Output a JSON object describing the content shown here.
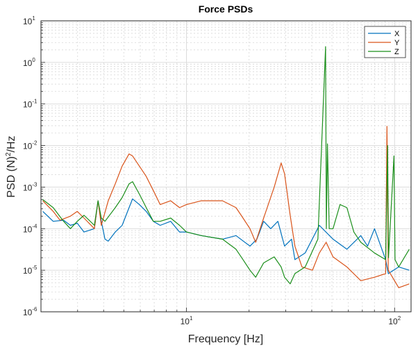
{
  "chart_data": {
    "type": "line",
    "title": "Force PSDs",
    "xlabel": "Frequency [Hz]",
    "ylabel_main": "PSD (N)",
    "ylabel_sup": "2",
    "ylabel_tail": "/Hz",
    "xscale": "log",
    "yscale": "log",
    "xlim": [
      2,
      120
    ],
    "ylim": [
      1e-06,
      10
    ],
    "grid": true,
    "minor_grid": true,
    "legend_placement": "top-right",
    "x_ticks": [
      {
        "base": "10",
        "exp": "1",
        "value": 10
      },
      {
        "base": "10",
        "exp": "2",
        "value": 100
      }
    ],
    "y_ticks": [
      {
        "base": "10",
        "exp": "1",
        "value": 10
      },
      {
        "base": "10",
        "exp": "0",
        "value": 1
      },
      {
        "base": "10",
        "exp": "-1",
        "value": 0.1
      },
      {
        "base": "10",
        "exp": "-2",
        "value": 0.01
      },
      {
        "base": "10",
        "exp": "-3",
        "value": 0.001
      },
      {
        "base": "10",
        "exp": "-4",
        "value": 0.0001
      },
      {
        "base": "10",
        "exp": "-5",
        "value": 1e-05
      },
      {
        "base": "10",
        "exp": "-6",
        "value": 1e-06
      }
    ],
    "series": [
      {
        "name": "X",
        "color": "#0072BD",
        "points": [
          [
            2.04,
            0.00026
          ],
          [
            2.29,
            0.00015
          ],
          [
            2.57,
            0.00016
          ],
          [
            2.77,
            0.00012
          ],
          [
            2.99,
            0.000135
          ],
          [
            3.22,
            8.3e-05
          ],
          [
            3.61,
            0.0001
          ],
          [
            3.76,
            0.00047
          ],
          [
            3.9,
            0.00015
          ],
          [
            4.06,
            5.6e-05
          ],
          [
            4.21,
            5e-05
          ],
          [
            4.55,
            8.3e-05
          ],
          [
            4.91,
            0.00012
          ],
          [
            5.3,
            0.00032
          ],
          [
            5.51,
            0.00052
          ],
          [
            5.94,
            0.00038
          ],
          [
            6.41,
            0.00026
          ],
          [
            6.93,
            0.00015
          ],
          [
            7.48,
            0.00012
          ],
          [
            8.4,
            0.00015
          ],
          [
            9.27,
            8.3e-05
          ],
          [
            10,
            8.3e-05
          ],
          [
            11.8,
            6.8e-05
          ],
          [
            14.9,
            5.6e-05
          ],
          [
            17.3,
            6.8e-05
          ],
          [
            20.2,
            3.8e-05
          ],
          [
            21.8,
            5.6e-05
          ],
          [
            23.5,
            0.00015
          ],
          [
            25.4,
            0.0001
          ],
          [
            27.5,
            0.00015
          ],
          [
            29.6,
            3.8e-05
          ],
          [
            32.0,
            5.6e-05
          ],
          [
            33.2,
            1.8e-05
          ],
          [
            37.2,
            2.6e-05
          ],
          [
            43.5,
            0.00012
          ],
          [
            50.6,
            5.6e-05
          ],
          [
            59.0,
            3.2e-05
          ],
          [
            68.8,
            6.8e-05
          ],
          [
            74.2,
            3.8e-05
          ],
          [
            80.1,
            0.0001
          ],
          [
            90.6,
            1.8e-05
          ],
          [
            93.3,
            8.3e-06
          ],
          [
            104.7,
            1.2e-05
          ],
          [
            117.6,
            1e-05
          ]
        ]
      },
      {
        "name": "Y",
        "color": "#D95319",
        "points": [
          [
            2.04,
            0.00047
          ],
          [
            2.29,
            0.00026
          ],
          [
            2.47,
            0.00016
          ],
          [
            2.77,
            0.0002
          ],
          [
            2.99,
            0.00026
          ],
          [
            3.22,
            0.00018
          ],
          [
            3.61,
            0.0001
          ],
          [
            3.76,
            0.00047
          ],
          [
            3.9,
            0.00012
          ],
          [
            4.21,
            0.00047
          ],
          [
            4.55,
            0.0012
          ],
          [
            4.91,
            0.0032
          ],
          [
            5.3,
            0.0063
          ],
          [
            5.51,
            0.0056
          ],
          [
            5.94,
            0.0032
          ],
          [
            6.41,
            0.0018
          ],
          [
            6.93,
            0.00083
          ],
          [
            7.48,
            0.00038
          ],
          [
            8.4,
            0.00047
          ],
          [
            9.27,
            0.00032
          ],
          [
            10,
            0.00038
          ],
          [
            11.8,
            0.00047
          ],
          [
            14.9,
            0.00047
          ],
          [
            17.3,
            0.00032
          ],
          [
            18.7,
            0.00018
          ],
          [
            20.2,
            0.0001
          ],
          [
            21.5,
            4.7e-05
          ],
          [
            23.5,
            0.00018
          ],
          [
            26.4,
            0.001
          ],
          [
            28.5,
            0.0038
          ],
          [
            29.6,
            0.0021
          ],
          [
            31.5,
            0.00021
          ],
          [
            33.2,
            3.8e-05
          ],
          [
            35.9,
            1.2e-05
          ],
          [
            40.3,
            1e-05
          ],
          [
            43.5,
            2.6e-05
          ],
          [
            46.9,
            4.7e-05
          ],
          [
            50.6,
            2.1e-05
          ],
          [
            59.0,
            1.2e-05
          ],
          [
            68.8,
            5.6e-06
          ],
          [
            80.1,
            6.8e-06
          ],
          [
            90.6,
            8.3e-06
          ],
          [
            91.9,
            0.029
          ],
          [
            93.3,
            1e-05
          ],
          [
            104.7,
            3.8e-06
          ],
          [
            117.6,
            4.7e-06
          ]
        ]
      },
      {
        "name": "Z",
        "color": "#1B8F1B",
        "points": [
          [
            2.04,
            0.0005
          ],
          [
            2.29,
            0.00032
          ],
          [
            2.57,
            0.00015
          ],
          [
            2.77,
            0.0001
          ],
          [
            2.99,
            0.00015
          ],
          [
            3.22,
            0.00021
          ],
          [
            3.61,
            0.00012
          ],
          [
            3.76,
            0.00047
          ],
          [
            3.9,
            0.00018
          ],
          [
            4.06,
            0.00015
          ],
          [
            4.55,
            0.00032
          ],
          [
            4.91,
            0.00056
          ],
          [
            5.3,
            0.0012
          ],
          [
            5.51,
            0.00135
          ],
          [
            5.94,
            0.00068
          ],
          [
            6.41,
            0.00032
          ],
          [
            6.93,
            0.00015
          ],
          [
            7.48,
            0.00015
          ],
          [
            8.4,
            0.00018
          ],
          [
            9.27,
            0.00012
          ],
          [
            10,
            8.3e-05
          ],
          [
            11.8,
            6.8e-05
          ],
          [
            14.9,
            5.6e-05
          ],
          [
            17.3,
            3.2e-05
          ],
          [
            18.7,
            1.8e-05
          ],
          [
            20.2,
            1e-05
          ],
          [
            21.5,
            6.8e-06
          ],
          [
            23.5,
            1.5e-05
          ],
          [
            26.4,
            2.1e-05
          ],
          [
            28.5,
            1.2e-05
          ],
          [
            29.6,
            6.8e-06
          ],
          [
            31.5,
            4.7e-06
          ],
          [
            33.2,
            8.3e-06
          ],
          [
            37.2,
            1.2e-05
          ],
          [
            42.8,
            5.6e-05
          ],
          [
            46.6,
            2.4
          ],
          [
            47.0,
            0.0001
          ],
          [
            47.6,
            0.011
          ],
          [
            48.5,
            0.0001
          ],
          [
            50.6,
            0.0001
          ],
          [
            54.7,
            0.00038
          ],
          [
            59.0,
            0.00032
          ],
          [
            63.7,
            8.3e-05
          ],
          [
            68.8,
            4.7e-05
          ],
          [
            80.1,
            2.6e-05
          ],
          [
            90.6,
            1.8e-05
          ],
          [
            92.6,
            0.01
          ],
          [
            93.5,
            2e-05
          ],
          [
            99.3,
            0.0056
          ],
          [
            100.5,
            1.8e-05
          ],
          [
            104.7,
            1.2e-05
          ],
          [
            117.6,
            3.2e-05
          ]
        ]
      }
    ]
  }
}
